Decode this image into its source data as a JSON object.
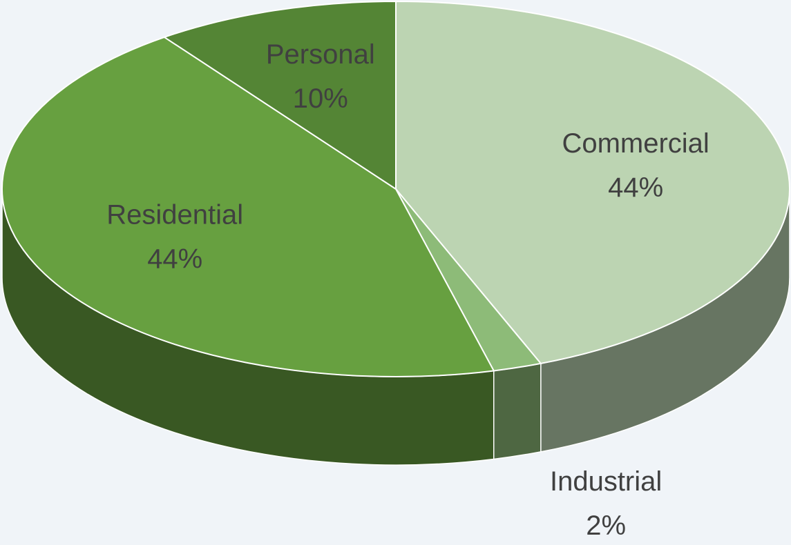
{
  "chart_data": {
    "type": "pie",
    "categories": [
      "Commercial",
      "Industrial",
      "Residential",
      "Personal"
    ],
    "values": [
      44,
      2,
      44,
      10
    ],
    "value_labels": [
      "44%",
      "2%",
      "44%",
      "10%"
    ],
    "colors": [
      "#bcd4b2",
      "#8dbb78",
      "#67a040",
      "#548535"
    ]
  }
}
